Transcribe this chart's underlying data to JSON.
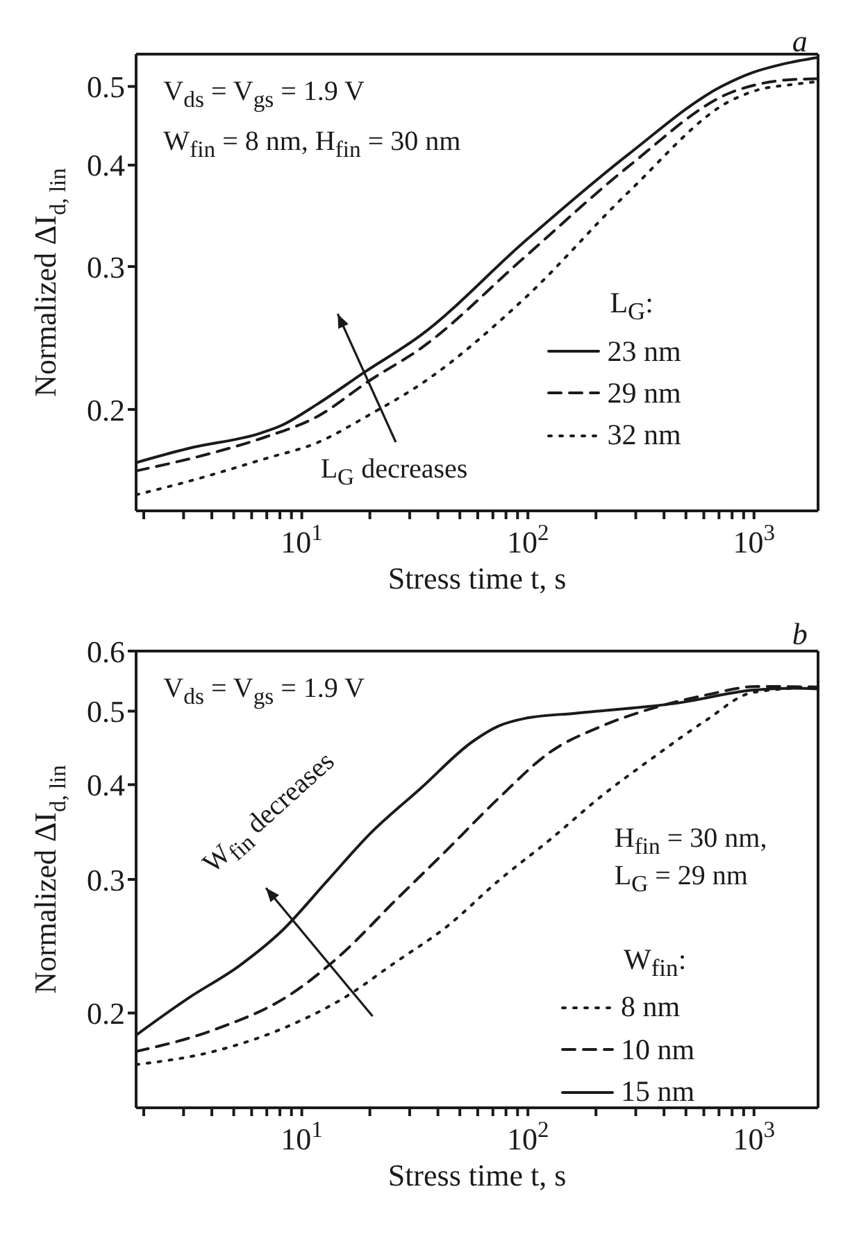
{
  "chart_data": [
    {
      "type": "line",
      "xlabel": "Stress time t, s",
      "ylabel": "Normalized ΔI$_{d, lin}$",
      "legend_title": "L$_{G}$:",
      "legend": "right",
      "marker": "none",
      "log": "xy",
      "xlim": [
        1.85,
        1920
      ],
      "xticks": [
        {
          "value": 2,
          "label": null
        },
        {
          "value": 3,
          "label": null
        },
        {
          "value": 4,
          "label": null
        },
        {
          "value": 5,
          "label": null
        },
        {
          "value": 6,
          "label": null
        },
        {
          "value": 7,
          "label": null
        },
        {
          "value": 8,
          "label": null
        },
        {
          "value": 9,
          "label": null
        },
        {
          "value": 10,
          "label": "10$^{1}$"
        },
        {
          "value": 20,
          "label": null
        },
        {
          "value": 30,
          "label": null
        },
        {
          "value": 40,
          "label": null
        },
        {
          "value": 50,
          "label": null
        },
        {
          "value": 60,
          "label": null
        },
        {
          "value": 70,
          "label": null
        },
        {
          "value": 80,
          "label": null
        },
        {
          "value": 90,
          "label": null
        },
        {
          "value": 100,
          "label": "10$^{2}$"
        },
        {
          "value": 200,
          "label": null
        },
        {
          "value": 300,
          "label": null
        },
        {
          "value": 400,
          "label": null
        },
        {
          "value": 500,
          "label": null
        },
        {
          "value": 600,
          "label": null
        },
        {
          "value": 700,
          "label": null
        },
        {
          "value": 800,
          "label": null
        },
        {
          "value": 900,
          "label": null
        },
        {
          "value": 1000,
          "label": "10$^{3}$"
        }
      ],
      "ylim": [
        0.15,
        0.548
      ],
      "yticks": [
        0.2,
        0.3,
        0.4,
        0.5
      ],
      "annotations": [
        "a",
        "V$_{ds}$ = V$_{gs}$ = 1.9 V",
        "W$_{fin}$ = 8 nm, H$_{fin}$ = 30 nm",
        "L$_{G}$ decreases"
      ],
      "series": [
        {
          "name": "23 nm",
          "color": "#1a1a1a",
          "line_style": "solid",
          "x": [
            1.85,
            3.13,
            6.56,
            8.09,
            11.7,
            18.8,
            33.7,
            96.6,
            277,
            718,
            984,
            1350,
            1920
          ],
          "values": [
            0.172,
            0.179,
            0.187,
            0.191,
            0.203,
            0.222,
            0.247,
            0.322,
            0.412,
            0.5,
            0.52,
            0.533,
            0.543
          ]
        },
        {
          "name": "29 nm",
          "color": "#1a1a1a",
          "line_style": "dashed",
          "x": [
            1.85,
            4.08,
            6.92,
            11.7,
            19.9,
            33.7,
            96.6,
            277,
            798,
            1037,
            1500,
            1920
          ],
          "values": [
            0.168,
            0.177,
            0.185,
            0.196,
            0.217,
            0.238,
            0.308,
            0.398,
            0.492,
            0.503,
            0.51,
            0.511
          ]
        },
        {
          "name": "32 nm",
          "color": "#1a1a1a",
          "line_style": "dotted",
          "x": [
            1.85,
            3.13,
            6.92,
            11.7,
            19.9,
            33.7,
            96.6,
            277,
            798,
            1037,
            1500,
            1920
          ],
          "values": [
            0.157,
            0.163,
            0.174,
            0.182,
            0.197,
            0.215,
            0.274,
            0.37,
            0.481,
            0.495,
            0.503,
            0.507
          ]
        }
      ]
    },
    {
      "type": "line",
      "xlabel": "Stress time t, s",
      "ylabel": "Normalized ΔI$_{d, lin}$",
      "legend_title": "W$_{fin}$:",
      "legend": "bottom right",
      "marker": "none",
      "log": "xy",
      "xlim": [
        1.85,
        1920
      ],
      "xticks": [
        {
          "value": 2,
          "label": null
        },
        {
          "value": 3,
          "label": null
        },
        {
          "value": 4,
          "label": null
        },
        {
          "value": 5,
          "label": null
        },
        {
          "value": 6,
          "label": null
        },
        {
          "value": 7,
          "label": null
        },
        {
          "value": 8,
          "label": null
        },
        {
          "value": 9,
          "label": null
        },
        {
          "value": 10,
          "label": "10$^{1}$"
        },
        {
          "value": 20,
          "label": null
        },
        {
          "value": 30,
          "label": null
        },
        {
          "value": 40,
          "label": null
        },
        {
          "value": 50,
          "label": null
        },
        {
          "value": 60,
          "label": null
        },
        {
          "value": 70,
          "label": null
        },
        {
          "value": 80,
          "label": null
        },
        {
          "value": 90,
          "label": null
        },
        {
          "value": 100,
          "label": "10$^{2}$"
        },
        {
          "value": 200,
          "label": null
        },
        {
          "value": 300,
          "label": null
        },
        {
          "value": 400,
          "label": null
        },
        {
          "value": 500,
          "label": null
        },
        {
          "value": 600,
          "label": null
        },
        {
          "value": 700,
          "label": null
        },
        {
          "value": 800,
          "label": null
        },
        {
          "value": 900,
          "label": null
        },
        {
          "value": 1000,
          "label": "10$^{3}$"
        }
      ],
      "ylim": [
        0.15,
        0.6
      ],
      "yticks": [
        0.2,
        0.3,
        0.4,
        0.5,
        0.6
      ],
      "annotations": [
        "b",
        "V$_{ds}$ = V$_{gs}$ = 1.9 V",
        "H$_{fin}$ = 30 nm,",
        "L$_{G}$ = 29 nm",
        "W$_{fin}$ decreases"
      ],
      "series": [
        {
          "name": "8 nm",
          "color": "#1a1a1a",
          "line_style": "dotted",
          "x": [
            1.85,
            4.08,
            9.0,
            15.2,
            25.8,
            43.8,
            74.3,
            126,
            213,
            361,
            612,
            984,
            1920
          ],
          "values": [
            0.171,
            0.178,
            0.193,
            0.209,
            0.233,
            0.26,
            0.299,
            0.339,
            0.387,
            0.435,
            0.486,
            0.529,
            0.538
          ]
        },
        {
          "name": "10 nm",
          "color": "#1a1a1a",
          "line_style": "dashed",
          "x": [
            1.85,
            4.08,
            9.0,
            15.2,
            25.8,
            43.8,
            74.3,
            126,
            213,
            361,
            612,
            1037,
            1920
          ],
          "values": [
            0.178,
            0.19,
            0.212,
            0.24,
            0.281,
            0.328,
            0.384,
            0.442,
            0.478,
            0.505,
            0.525,
            0.539,
            0.538
          ]
        },
        {
          "name": "15 nm",
          "color": "#1a1a1a",
          "line_style": "solid",
          "x": [
            1.85,
            3.13,
            5.31,
            8.09,
            13.0,
            19.9,
            33.7,
            57.0,
            74.3,
            96.6,
            164,
            470,
            984,
            1500,
            1920
          ],
          "values": [
            0.187,
            0.209,
            0.231,
            0.256,
            0.299,
            0.344,
            0.396,
            0.456,
            0.478,
            0.489,
            0.497,
            0.513,
            0.533,
            0.536,
            0.535
          ]
        }
      ]
    }
  ]
}
